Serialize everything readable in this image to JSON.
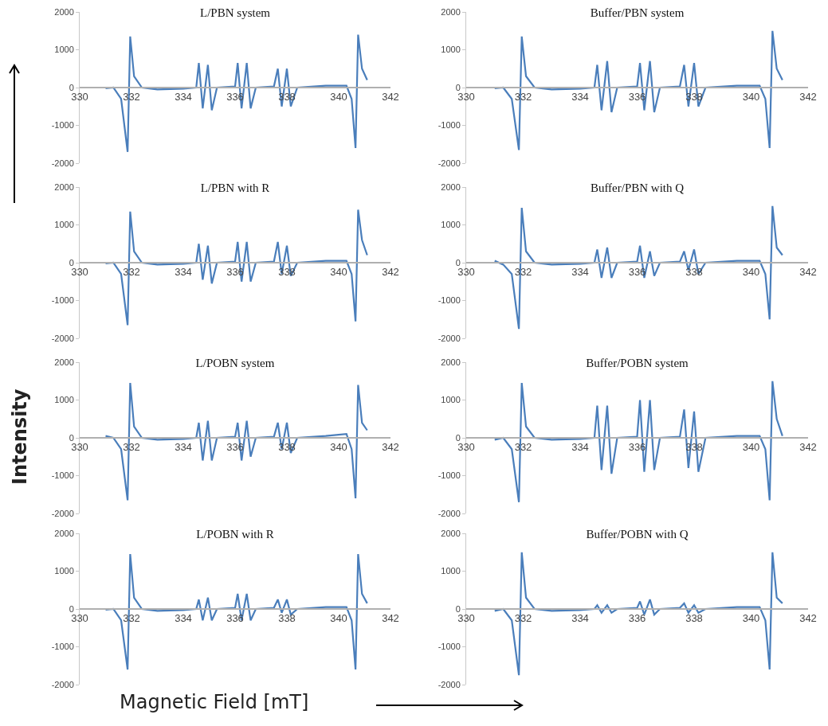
{
  "chart_data": [
    {
      "type": "line",
      "title": "L/PBN system",
      "x": [
        331.0,
        331.3,
        331.6,
        331.85,
        331.95,
        332.1,
        332.4,
        333.0,
        334.0,
        334.5,
        334.6,
        334.75,
        334.95,
        335.1,
        335.3,
        336.0,
        336.1,
        336.25,
        336.45,
        336.6,
        336.8,
        337.5,
        337.65,
        337.8,
        338.0,
        338.15,
        338.4,
        339.5,
        340.3,
        340.5,
        340.65,
        340.75,
        340.9,
        341.1
      ],
      "series": [
        {
          "color": "#4a7ebb",
          "values": [
            -20,
            0,
            -300,
            -1700,
            1350,
            300,
            0,
            -50,
            -30,
            0,
            650,
            -550,
            600,
            -600,
            0,
            30,
            650,
            -550,
            650,
            -550,
            0,
            30,
            500,
            -500,
            500,
            -500,
            0,
            50,
            50,
            -300,
            -1600,
            1400,
            500,
            200
          ]
        }
      ],
      "xlim": [
        330,
        342
      ],
      "xticks": [
        330,
        332,
        334,
        336,
        338,
        340,
        342
      ],
      "ylim": [
        -2000,
        2000
      ],
      "yticks": [
        -2000,
        -1000,
        0,
        1000,
        2000
      ],
      "line_style": "solid"
    },
    {
      "type": "line",
      "title": "Buffer/PBN system",
      "x": [
        331.0,
        331.3,
        331.6,
        331.85,
        331.95,
        332.1,
        332.4,
        333.0,
        334.0,
        334.5,
        334.6,
        334.75,
        334.95,
        335.1,
        335.3,
        336.0,
        336.1,
        336.25,
        336.45,
        336.6,
        336.8,
        337.5,
        337.65,
        337.8,
        338.0,
        338.15,
        338.4,
        339.5,
        340.3,
        340.5,
        340.65,
        340.75,
        340.9,
        341.1
      ],
      "series": [
        {
          "color": "#4a7ebb",
          "values": [
            -20,
            0,
            -300,
            -1650,
            1350,
            300,
            0,
            -50,
            -30,
            0,
            600,
            -600,
            700,
            -650,
            0,
            30,
            650,
            -600,
            700,
            -650,
            0,
            30,
            600,
            -500,
            650,
            -500,
            0,
            50,
            50,
            -300,
            -1600,
            1500,
            500,
            200
          ]
        }
      ],
      "xlim": [
        330,
        342
      ],
      "xticks": [
        330,
        332,
        334,
        336,
        338,
        340,
        342
      ],
      "ylim": [
        -2000,
        2000
      ],
      "yticks": [
        -2000,
        -1000,
        0,
        1000,
        2000
      ],
      "line_style": "solid"
    },
    {
      "type": "line",
      "title": "L/PBN with R",
      "x": [
        331.0,
        331.3,
        331.6,
        331.85,
        331.95,
        332.1,
        332.4,
        333.0,
        334.0,
        334.5,
        334.6,
        334.75,
        334.95,
        335.1,
        335.3,
        336.0,
        336.1,
        336.25,
        336.45,
        336.6,
        336.8,
        337.5,
        337.65,
        337.8,
        338.0,
        338.15,
        338.4,
        339.5,
        340.3,
        340.5,
        340.65,
        340.75,
        340.9,
        341.1
      ],
      "series": [
        {
          "color": "#4a7ebb",
          "values": [
            -20,
            0,
            -300,
            -1650,
            1350,
            300,
            0,
            -50,
            -30,
            0,
            500,
            -450,
            450,
            -550,
            0,
            30,
            550,
            -500,
            550,
            -500,
            0,
            30,
            550,
            -300,
            450,
            -350,
            0,
            50,
            50,
            -300,
            -1550,
            1400,
            600,
            200
          ]
        }
      ],
      "xlim": [
        330,
        342
      ],
      "xticks": [
        330,
        332,
        334,
        336,
        338,
        340,
        342
      ],
      "ylim": [
        -2000,
        2000
      ],
      "yticks": [
        -2000,
        -1000,
        0,
        1000,
        2000
      ],
      "line_style": "solid"
    },
    {
      "type": "line",
      "title": "Buffer/PBN with Q",
      "x": [
        331.0,
        331.3,
        331.6,
        331.85,
        331.95,
        332.1,
        332.4,
        333.0,
        334.0,
        334.5,
        334.6,
        334.75,
        334.95,
        335.1,
        335.3,
        336.0,
        336.1,
        336.25,
        336.45,
        336.6,
        336.8,
        337.5,
        337.65,
        337.8,
        338.0,
        338.15,
        338.4,
        339.5,
        340.3,
        340.5,
        340.65,
        340.75,
        340.9,
        341.1
      ],
      "series": [
        {
          "color": "#4a7ebb",
          "values": [
            50,
            -50,
            -300,
            -1750,
            1450,
            300,
            0,
            -50,
            -30,
            0,
            350,
            -400,
            400,
            -400,
            0,
            30,
            450,
            -400,
            300,
            -350,
            0,
            30,
            300,
            -200,
            350,
            -300,
            0,
            50,
            50,
            -300,
            -1500,
            1500,
            400,
            200
          ]
        }
      ],
      "xlim": [
        330,
        342
      ],
      "xticks": [
        330,
        332,
        334,
        336,
        338,
        340,
        342
      ],
      "ylim": [
        -2000,
        2000
      ],
      "yticks": [
        -2000,
        -1000,
        0,
        1000,
        2000
      ],
      "line_style": "solid"
    },
    {
      "type": "line",
      "title": "L/POBN system",
      "ylabel": "Intensity",
      "x": [
        331.0,
        331.3,
        331.6,
        331.85,
        331.95,
        332.1,
        332.4,
        333.0,
        334.0,
        334.5,
        334.6,
        334.75,
        334.95,
        335.1,
        335.3,
        336.0,
        336.1,
        336.25,
        336.45,
        336.6,
        336.8,
        337.5,
        337.65,
        337.8,
        338.0,
        338.15,
        338.4,
        339.5,
        340.3,
        340.5,
        340.65,
        340.75,
        340.9,
        341.1
      ],
      "series": [
        {
          "color": "#4a7ebb",
          "values": [
            50,
            0,
            -300,
            -1650,
            1450,
            300,
            0,
            -50,
            -30,
            0,
            400,
            -600,
            450,
            -600,
            0,
            30,
            400,
            -600,
            450,
            -500,
            0,
            30,
            400,
            -300,
            400,
            -400,
            0,
            50,
            100,
            -300,
            -1600,
            1400,
            400,
            200
          ]
        }
      ],
      "xlim": [
        330,
        342
      ],
      "xticks": [
        330,
        332,
        334,
        336,
        338,
        340,
        342
      ],
      "ylim": [
        -2000,
        2000
      ],
      "yticks": [
        -2000,
        -1000,
        0,
        1000,
        2000
      ],
      "line_style": "solid"
    },
    {
      "type": "line",
      "title": "Buffer/POBN system",
      "x": [
        331.0,
        331.3,
        331.6,
        331.85,
        331.95,
        332.1,
        332.4,
        333.0,
        334.0,
        334.5,
        334.6,
        334.75,
        334.95,
        335.1,
        335.3,
        336.0,
        336.1,
        336.25,
        336.45,
        336.6,
        336.8,
        337.5,
        337.65,
        337.8,
        338.0,
        338.15,
        338.4,
        339.5,
        340.3,
        340.5,
        340.65,
        340.75,
        340.9,
        341.1
      ],
      "series": [
        {
          "color": "#4a7ebb",
          "values": [
            -50,
            0,
            -300,
            -1700,
            1450,
            300,
            0,
            -50,
            -30,
            0,
            850,
            -850,
            850,
            -950,
            0,
            30,
            1000,
            -900,
            1000,
            -850,
            0,
            30,
            750,
            -800,
            700,
            -900,
            0,
            50,
            50,
            -300,
            -1650,
            1500,
            500,
            50
          ]
        }
      ],
      "xlim": [
        330,
        342
      ],
      "xticks": [
        330,
        332,
        334,
        336,
        338,
        340,
        342
      ],
      "ylim": [
        -2000,
        2000
      ],
      "yticks": [
        -2000,
        -1000,
        0,
        1000,
        2000
      ],
      "line_style": "solid"
    },
    {
      "type": "line",
      "title": "L/POBN with R",
      "xlabel": "Magnetic Field [mT]",
      "x": [
        331.0,
        331.3,
        331.6,
        331.85,
        331.95,
        332.1,
        332.4,
        333.0,
        334.0,
        334.5,
        334.6,
        334.75,
        334.95,
        335.1,
        335.3,
        336.0,
        336.1,
        336.25,
        336.45,
        336.6,
        336.8,
        337.5,
        337.65,
        337.8,
        338.0,
        338.15,
        338.4,
        339.5,
        340.3,
        340.5,
        340.65,
        340.75,
        340.9,
        341.1
      ],
      "series": [
        {
          "color": "#4a7ebb",
          "values": [
            -20,
            0,
            -300,
            -1600,
            1450,
            300,
            0,
            -50,
            -30,
            0,
            250,
            -300,
            300,
            -300,
            0,
            30,
            400,
            -300,
            400,
            -300,
            0,
            30,
            250,
            -100,
            250,
            -150,
            0,
            50,
            50,
            -300,
            -1600,
            1450,
            400,
            150
          ]
        }
      ],
      "xlim": [
        330,
        342
      ],
      "xticks": [
        330,
        332,
        334,
        336,
        338,
        340,
        342
      ],
      "ylim": [
        -2000,
        2000
      ],
      "yticks": [
        -2000,
        -1000,
        0,
        1000,
        2000
      ],
      "line_style": "solid"
    },
    {
      "type": "line",
      "title": "Buffer/POBN with Q",
      "x": [
        331.0,
        331.3,
        331.6,
        331.85,
        331.95,
        332.1,
        332.4,
        333.0,
        334.0,
        334.5,
        334.6,
        334.75,
        334.95,
        335.1,
        335.3,
        336.0,
        336.1,
        336.25,
        336.45,
        336.6,
        336.8,
        337.5,
        337.65,
        337.8,
        338.0,
        338.15,
        338.4,
        339.5,
        340.3,
        340.5,
        340.65,
        340.75,
        340.9,
        341.1
      ],
      "series": [
        {
          "color": "#4a7ebb",
          "values": [
            -50,
            0,
            -300,
            -1750,
            1500,
            300,
            0,
            -50,
            -30,
            0,
            100,
            -100,
            100,
            -100,
            0,
            30,
            200,
            -150,
            250,
            -150,
            0,
            30,
            150,
            -100,
            100,
            -100,
            0,
            50,
            50,
            -300,
            -1600,
            1500,
            300,
            150
          ]
        }
      ],
      "xlim": [
        330,
        342
      ],
      "xticks": [
        330,
        332,
        334,
        336,
        338,
        340,
        342
      ],
      "ylim": [
        -2000,
        2000
      ],
      "yticks": [
        -2000,
        -1000,
        0,
        1000,
        2000
      ],
      "line_style": "solid"
    }
  ]
}
